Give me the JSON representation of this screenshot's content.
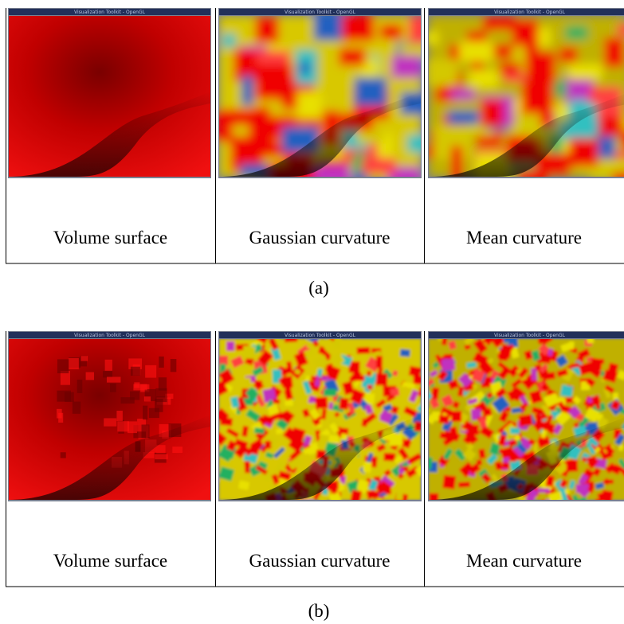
{
  "figures": [
    {
      "label": "(a)",
      "panels": [
        {
          "window_title": "Visualization Toolkit - OpenGL",
          "caption": "Volume surface"
        },
        {
          "window_title": "Visualization Toolkit - OpenGL",
          "caption": "Gaussian curvature"
        },
        {
          "window_title": "Visualization Toolkit - OpenGL",
          "caption": "Mean curvature"
        }
      ]
    },
    {
      "label": "(b)",
      "panels": [
        {
          "window_title": "Visualization Toolkit - OpenGL",
          "caption": "Volume surface"
        },
        {
          "window_title": "Visualization Toolkit - OpenGL",
          "caption": "Gaussian curvature"
        },
        {
          "window_title": "Visualization Toolkit - OpenGL",
          "caption": "Mean curvature"
        }
      ]
    }
  ]
}
